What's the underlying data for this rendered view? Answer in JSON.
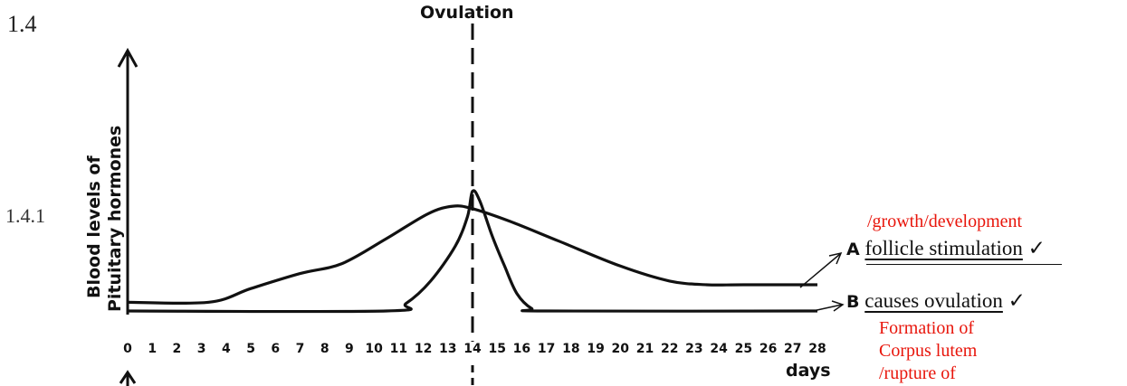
{
  "question": {
    "number": "1.4",
    "sub_number": "1.4.1"
  },
  "chart_data": {
    "type": "line",
    "title": "Ovulation",
    "ylabel_line1": "Blood levels of",
    "ylabel_line2": "Pituitary hormones",
    "xlabel": "days",
    "x_ticks": [
      0,
      1,
      2,
      3,
      4,
      5,
      6,
      7,
      8,
      9,
      10,
      11,
      12,
      13,
      14,
      15,
      16,
      17,
      18,
      19,
      20,
      21,
      22,
      23,
      24,
      25,
      26,
      27,
      28
    ],
    "xlim": [
      0,
      28
    ],
    "ylim": [
      0,
      10
    ],
    "ovulation_day": 14,
    "grid": false,
    "series": [
      {
        "name": "A",
        "x": [
          0,
          3.3,
          5,
          7,
          8.7,
          10.5,
          12.2,
          13.2,
          14,
          15.5,
          17.5,
          20,
          22,
          23.5,
          25,
          28
        ],
        "y": [
          0.35,
          0.35,
          0.9,
          1.5,
          1.9,
          2.9,
          3.9,
          4.2,
          4.1,
          3.6,
          2.8,
          1.8,
          1.2,
          1.05,
          1.05,
          1.05
        ]
      },
      {
        "name": "B",
        "x": [
          0,
          10.5,
          11.3,
          12.3,
          13.3,
          13.8,
          14,
          14.3,
          14.8,
          15.3,
          15.8,
          16.4,
          17,
          28
        ],
        "y": [
          0,
          0,
          0.3,
          1.2,
          2.6,
          3.8,
          4.8,
          4.4,
          3.0,
          1.8,
          0.7,
          0.1,
          0,
          0
        ]
      }
    ]
  },
  "answers": {
    "a": {
      "label": "A",
      "text": "follicle stimulation",
      "tick": "✓",
      "annotation": "/growth/development",
      "annotation_color": "#e8150b"
    },
    "b": {
      "label": "B",
      "text": "causes ovulation",
      "tick": "✓",
      "notes": [
        "Formation of",
        "Corpus lutem",
        "/rupture of"
      ],
      "annotation_color": "#e8150b"
    }
  }
}
